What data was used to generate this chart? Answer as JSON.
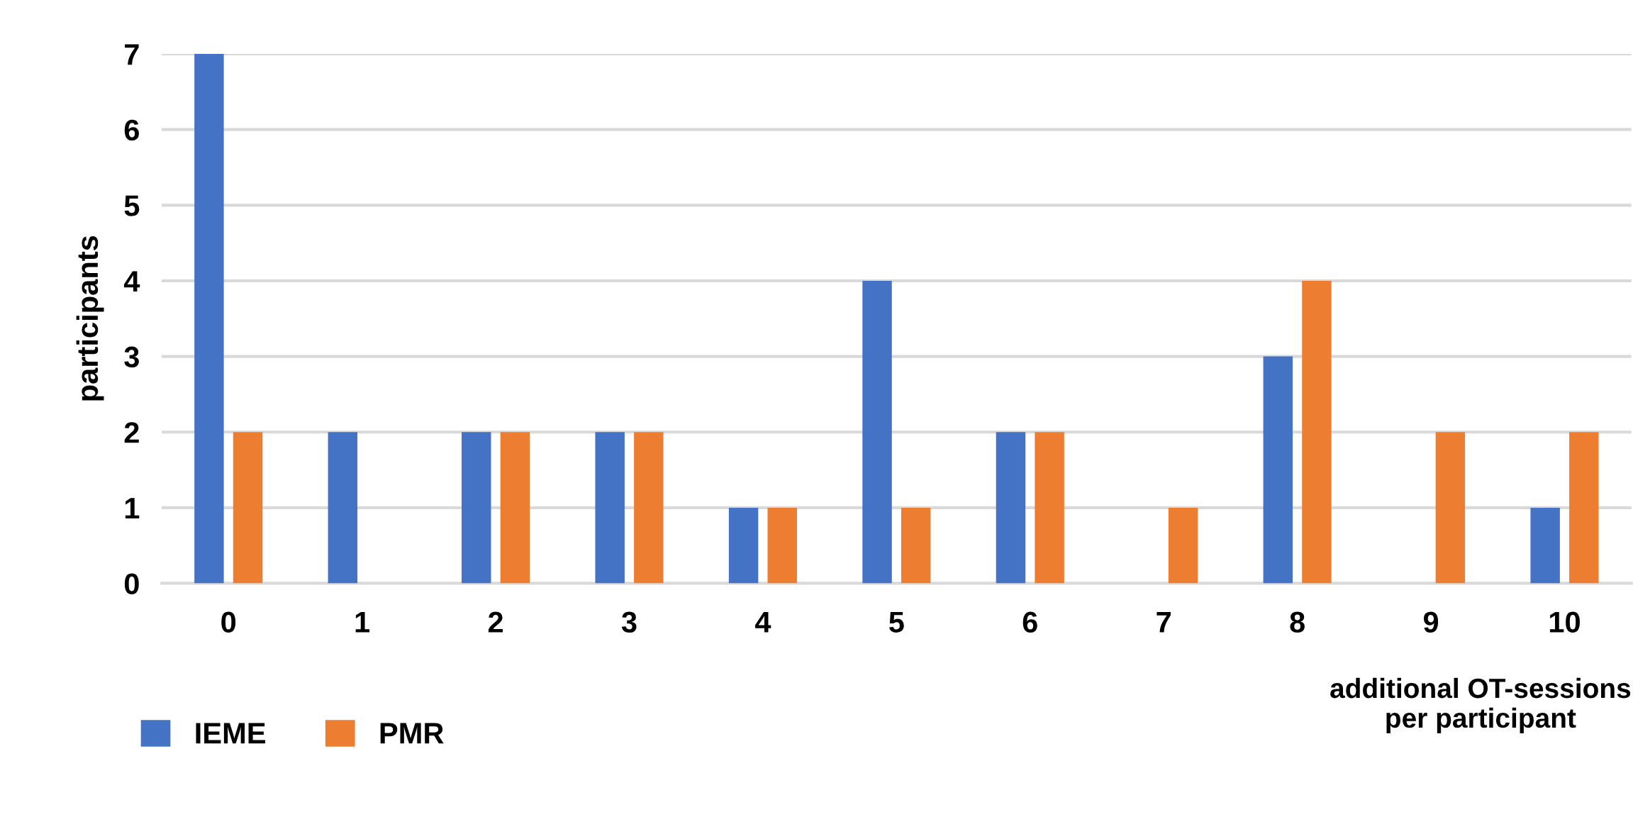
{
  "chart_data": {
    "type": "bar",
    "categories": [
      "0",
      "1",
      "2",
      "3",
      "4",
      "5",
      "6",
      "7",
      "8",
      "9",
      "10"
    ],
    "series": [
      {
        "name": "IEME",
        "color": "#4472c4",
        "values": [
          7,
          2,
          2,
          2,
          1,
          4,
          2,
          0,
          3,
          0,
          1
        ]
      },
      {
        "name": "PMR",
        "color": "#ed7d31",
        "values": [
          2,
          0,
          2,
          2,
          1,
          1,
          2,
          1,
          4,
          2,
          2
        ]
      }
    ],
    "ylabel": "participants",
    "xlabel": "additional OT-sessions\nper participant",
    "ylim": [
      0,
      7
    ],
    "yticks": [
      0,
      1,
      2,
      3,
      4,
      5,
      6,
      7
    ],
    "grid": "y",
    "legend": "bottom left"
  }
}
